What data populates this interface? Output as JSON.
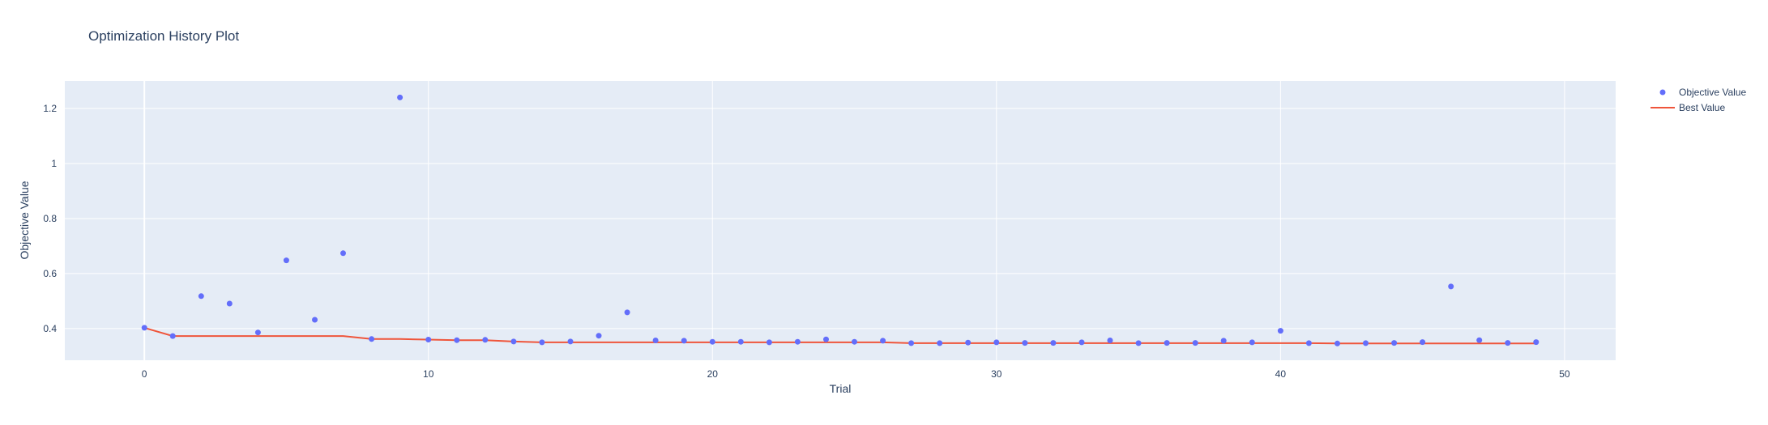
{
  "chart_data": {
    "type": "scatter",
    "title": "Optimization History Plot",
    "xlabel": "Trial",
    "ylabel": "Objective Value",
    "xlim": [
      -2.8,
      51.8
    ],
    "ylim": [
      0.285,
      1.3
    ],
    "xticks": [
      0,
      10,
      20,
      30,
      40,
      50
    ],
    "yticks": [
      0.4,
      0.6,
      0.8,
      1,
      1.2
    ],
    "ytick_labels": [
      "0.4",
      "0.6",
      "0.8",
      "1",
      "1.2"
    ],
    "grid": true,
    "legend_position": "top-right",
    "series": [
      {
        "name": "Objective Value",
        "kind": "markers",
        "color": "#636efa",
        "x": [
          0,
          1,
          2,
          3,
          4,
          5,
          6,
          7,
          8,
          9,
          10,
          11,
          12,
          13,
          14,
          15,
          16,
          17,
          18,
          19,
          20,
          21,
          22,
          23,
          24,
          25,
          26,
          27,
          28,
          29,
          30,
          31,
          32,
          33,
          34,
          35,
          36,
          37,
          38,
          39,
          40,
          41,
          42,
          43,
          44,
          45,
          46,
          47,
          48,
          49
        ],
        "y": [
          0.403,
          0.373,
          0.518,
          0.491,
          0.386,
          0.648,
          0.432,
          0.674,
          0.362,
          1.24,
          0.36,
          0.358,
          0.359,
          0.353,
          0.35,
          0.353,
          0.374,
          0.459,
          0.357,
          0.356,
          0.352,
          0.352,
          0.35,
          0.352,
          0.361,
          0.352,
          0.356,
          0.347,
          0.347,
          0.349,
          0.35,
          0.348,
          0.348,
          0.35,
          0.357,
          0.347,
          0.348,
          0.348,
          0.356,
          0.35,
          0.392,
          0.347,
          0.346,
          0.347,
          0.348,
          0.351,
          0.553,
          0.358,
          0.348,
          0.351
        ]
      },
      {
        "name": "Best Value",
        "kind": "line",
        "color": "#ef553b",
        "x": [
          0,
          1,
          2,
          3,
          4,
          5,
          6,
          7,
          8,
          9,
          10,
          11,
          12,
          13,
          14,
          15,
          16,
          17,
          18,
          19,
          20,
          21,
          22,
          23,
          24,
          25,
          26,
          27,
          28,
          29,
          30,
          31,
          32,
          33,
          34,
          35,
          36,
          37,
          38,
          39,
          40,
          41,
          42,
          43,
          44,
          45,
          46,
          47,
          48,
          49
        ],
        "y": [
          0.403,
          0.373,
          0.373,
          0.373,
          0.373,
          0.373,
          0.373,
          0.373,
          0.362,
          0.362,
          0.36,
          0.358,
          0.358,
          0.353,
          0.35,
          0.35,
          0.35,
          0.35,
          0.35,
          0.35,
          0.35,
          0.35,
          0.35,
          0.35,
          0.35,
          0.35,
          0.35,
          0.347,
          0.347,
          0.347,
          0.347,
          0.347,
          0.347,
          0.347,
          0.347,
          0.347,
          0.347,
          0.347,
          0.347,
          0.347,
          0.347,
          0.347,
          0.346,
          0.346,
          0.346,
          0.346,
          0.346,
          0.346,
          0.346,
          0.346
        ]
      }
    ]
  }
}
